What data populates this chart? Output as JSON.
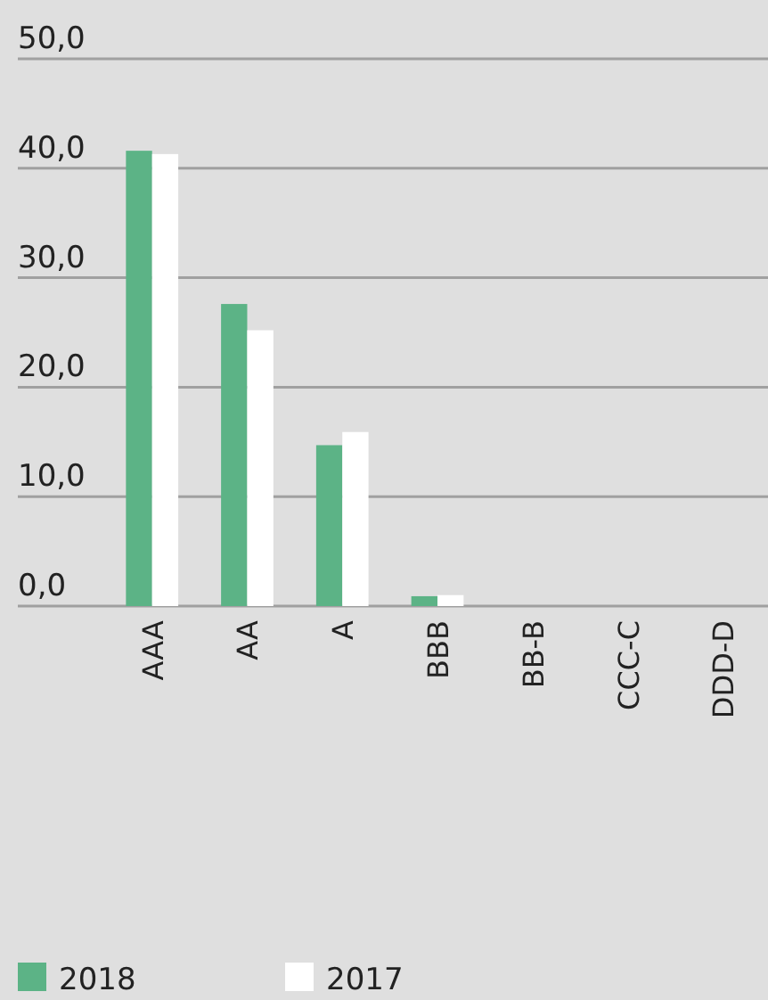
{
  "chart_data": {
    "type": "bar",
    "categories": [
      "AAA",
      "AA",
      "A",
      "BBB",
      "BB-B",
      "CCC-C",
      "DDD-D"
    ],
    "series": [
      {
        "name": "2018",
        "color": "#5cb386",
        "values": [
          41.6,
          27.6,
          14.7,
          0.9,
          0,
          0,
          0
        ]
      },
      {
        "name": "2017",
        "color": "#ffffff",
        "values": [
          41.3,
          25.2,
          15.9,
          1.0,
          0,
          0,
          0
        ]
      }
    ],
    "ylim": [
      0,
      50
    ],
    "yticks": [
      {
        "value": 0,
        "label": "0,0"
      },
      {
        "value": 10,
        "label": "10,0"
      },
      {
        "value": 20,
        "label": "20,0"
      },
      {
        "value": 30,
        "label": "30,0"
      },
      {
        "value": 40,
        "label": "40,0"
      },
      {
        "value": 50,
        "label": "50,0"
      }
    ],
    "grid": "y",
    "legend": "bottom"
  }
}
